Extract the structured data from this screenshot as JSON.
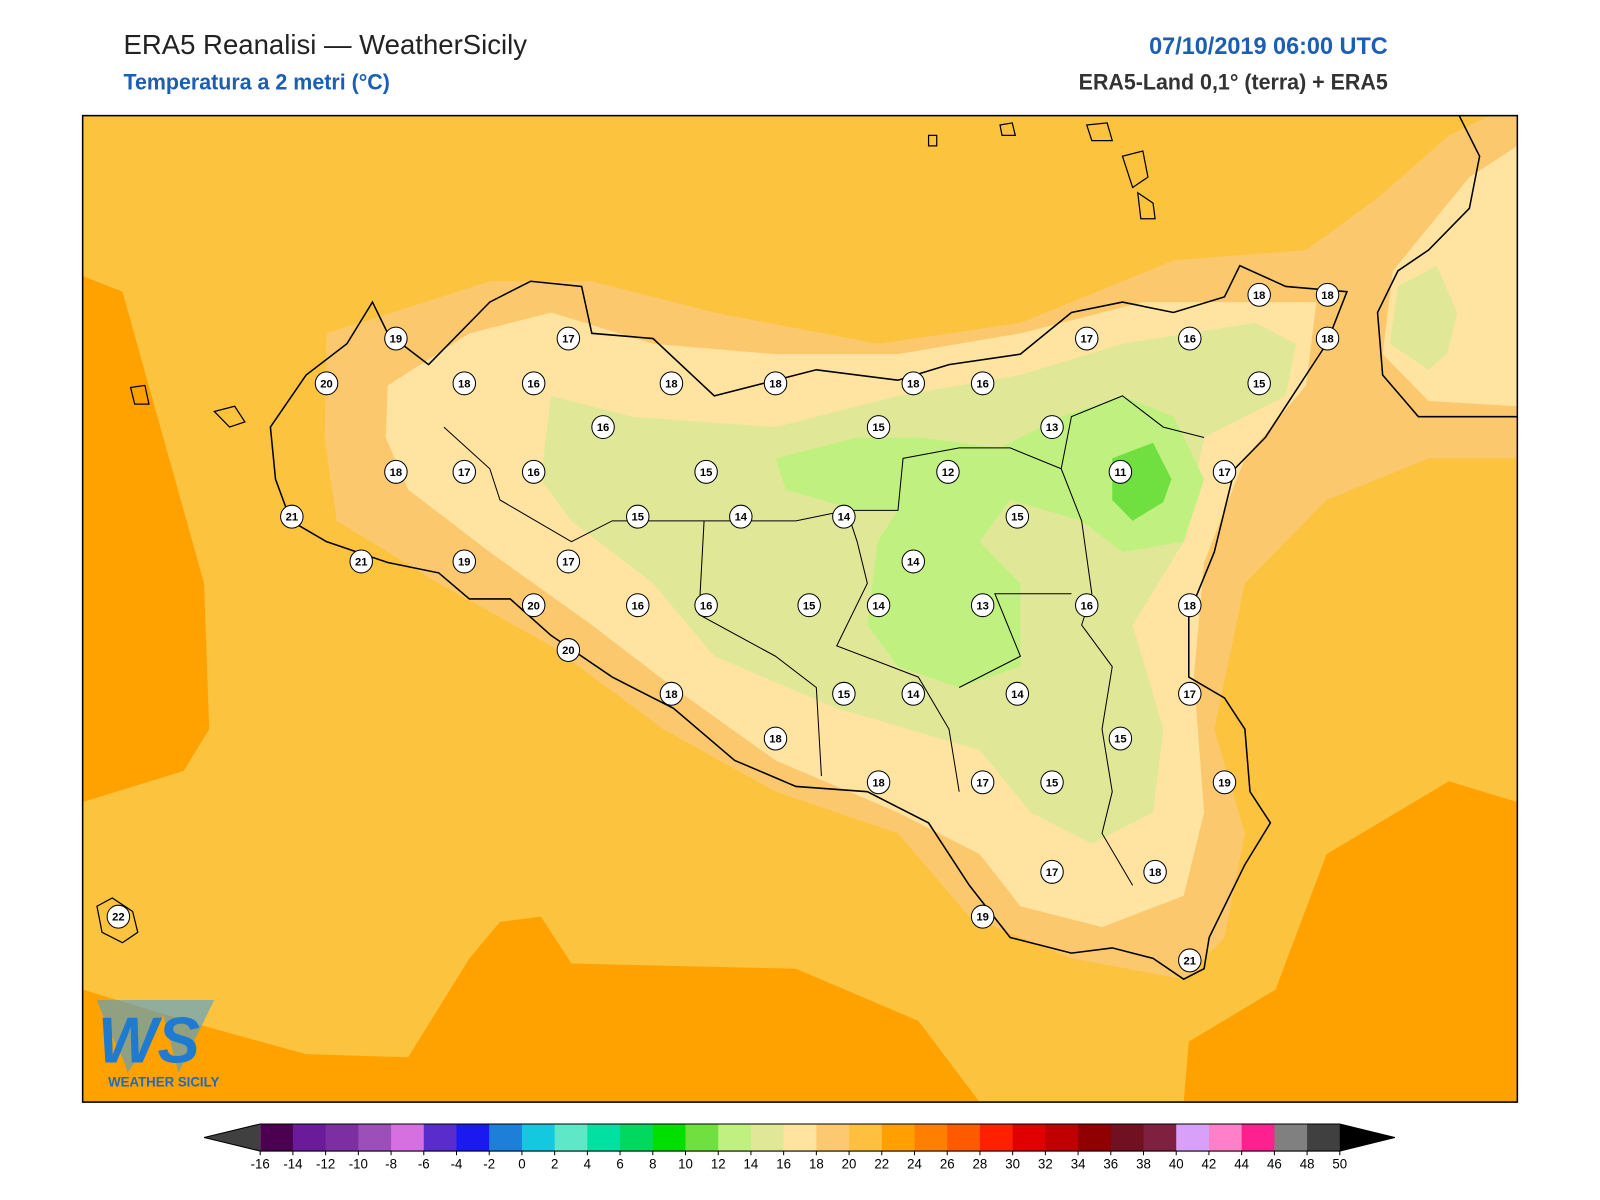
{
  "header": {
    "title": "ERA5 Reanalisi — WeatherSicily",
    "subtitle": "Temperatura a 2 metri (°C)",
    "datetime": "07/10/2019 06:00 UTC",
    "source": "ERA5-Land 0,1° (terra) + ERA5"
  },
  "stations": {
    "values": [
      19,
      17,
      20,
      18,
      16,
      18,
      18,
      18,
      16,
      17,
      16,
      18,
      18,
      18,
      15,
      16,
      15,
      13,
      18,
      17,
      16,
      15,
      12,
      11,
      17,
      21,
      15,
      14,
      14,
      15,
      21,
      19,
      17,
      14,
      20,
      16,
      16,
      15,
      14,
      13,
      16,
      18,
      20,
      18,
      15,
      14,
      14,
      17,
      18,
      15,
      18,
      17,
      15,
      19,
      17,
      18,
      19,
      21,
      22
    ]
  },
  "colorbar": {
    "ticks": [
      -16,
      -14,
      -12,
      -10,
      -8,
      -6,
      -4,
      -2,
      0,
      2,
      4,
      6,
      8,
      10,
      12,
      14,
      16,
      18,
      20,
      22,
      24,
      26,
      28,
      30,
      32,
      34,
      36,
      38,
      40,
      42,
      44,
      46,
      48,
      50
    ],
    "colors": [
      "#404040",
      "#4b0050",
      "#6a1b9a",
      "#7b2fa0",
      "#9c4fb8",
      "#d66fe0",
      "#5a2ccc",
      "#1a1af0",
      "#1e7fd8",
      "#14c8e0",
      "#5ee8c8",
      "#00e0a0",
      "#00d860",
      "#00e000",
      "#70e040",
      "#c0f080",
      "#e0e898",
      "#ffe4a0",
      "#fcc870",
      "#ffc040",
      "#ffa000",
      "#ff8000",
      "#ff5a00",
      "#ff2000",
      "#e00000",
      "#c00000",
      "#900000",
      "#701020",
      "#802040",
      "#d8a0f8",
      "#ff80c8",
      "#ff2090",
      "#808080",
      "#404040",
      "#000000"
    ]
  },
  "logo": {
    "text": "WS",
    "subtitle": "WEATHER SICILY"
  }
}
